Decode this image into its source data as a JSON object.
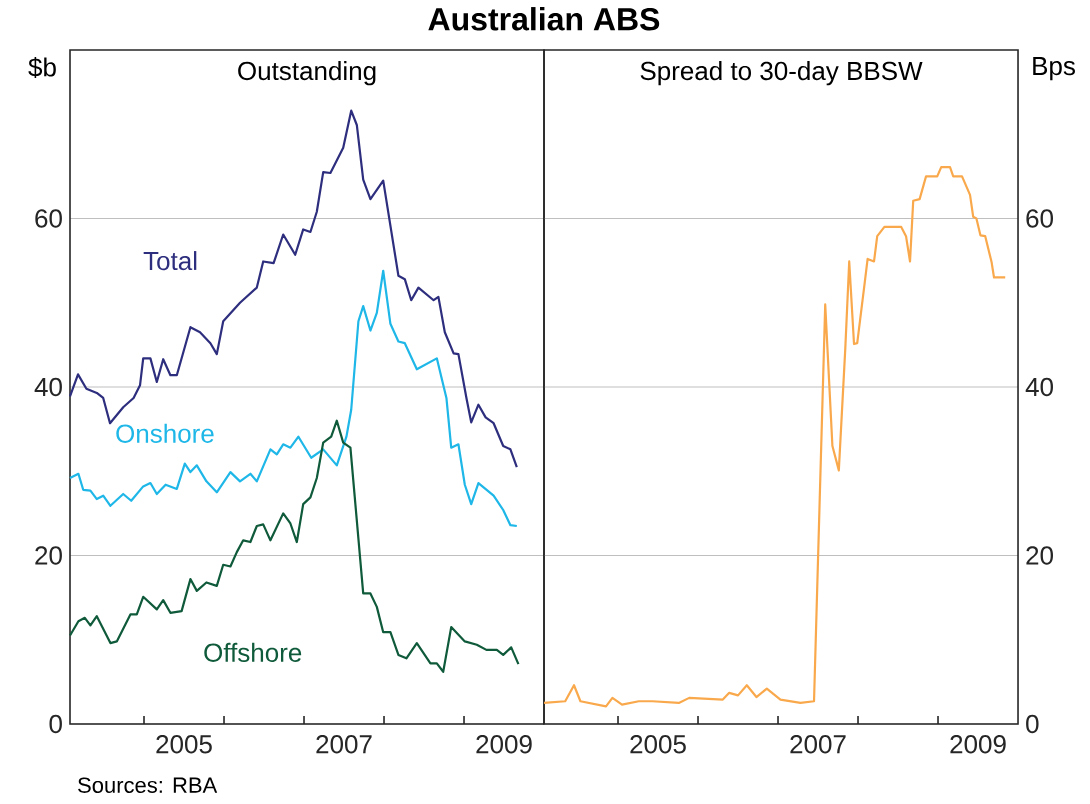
{
  "chart_data": [
    {
      "type": "line",
      "title": "Australian ABS",
      "subtitle": "Outstanding",
      "ylabel": "$b",
      "xlim": [
        2004.075,
        2010
      ],
      "ylim": [
        0,
        80
      ],
      "xticks": [
        {
          "value": 2005,
          "label": null
        },
        {
          "value": 2005.5,
          "label": "2005"
        },
        {
          "value": 2006,
          "label": null
        },
        {
          "value": 2007,
          "label": null
        },
        {
          "value": 2007.5,
          "label": "2007"
        },
        {
          "value": 2008,
          "label": null
        },
        {
          "value": 2009,
          "label": null
        },
        {
          "value": 2009.5,
          "label": "2009"
        }
      ],
      "yticks": [
        0,
        20,
        40,
        60
      ],
      "grid": "y",
      "annotations": [
        "Sources: RBA"
      ],
      "series": [
        {
          "name": "Total",
          "color": "#2e2e7e",
          "x": [
            2004.075,
            2004.175,
            2004.28,
            2004.41,
            2004.49,
            2004.575,
            2004.74,
            2004.87,
            2004.95,
            2004.99,
            2005.08,
            2005.16,
            2005.24,
            2005.33,
            2005.41,
            2005.58,
            2005.7,
            2005.83,
            2005.91,
            2005.99,
            2006.2,
            2006.41,
            2006.49,
            2006.62,
            2006.74,
            2006.89,
            2006.99,
            2007.08,
            2007.16,
            2007.24,
            2007.33,
            2007.49,
            2007.59,
            2007.66,
            2007.74,
            2007.83,
            2007.99,
            2008.18,
            2008.26,
            2008.34,
            2008.43,
            2008.62,
            2008.68,
            2008.76,
            2008.87,
            2008.93,
            2009.03,
            2009.09,
            2009.18,
            2009.27,
            2009.37,
            2009.49,
            2009.58,
            2009.66
          ],
          "values": [
            38.9,
            41.5,
            39.8,
            39.3,
            38.7,
            35.7,
            37.6,
            38.7,
            40.2,
            43.4,
            43.4,
            40.6,
            43.3,
            41.4,
            41.4,
            47.1,
            46.5,
            45.2,
            43.9,
            47.8,
            50.0,
            51.8,
            54.9,
            54.7,
            58.1,
            55.7,
            58.7,
            58.4,
            60.8,
            65.5,
            65.4,
            68.4,
            72.8,
            71.1,
            64.6,
            62.3,
            64.5,
            53.2,
            52.8,
            50.3,
            51.8,
            50.3,
            50.7,
            46.5,
            44.0,
            43.9,
            38.7,
            35.8,
            37.9,
            36.4,
            35.7,
            33.0,
            32.6,
            30.5
          ]
        },
        {
          "name": "Onshore",
          "color": "#1eb7e8",
          "x": [
            2004.075,
            2004.18,
            2004.24,
            2004.33,
            2004.41,
            2004.49,
            2004.58,
            2004.74,
            2004.84,
            2004.99,
            2005.08,
            2005.16,
            2005.27,
            2005.41,
            2005.51,
            2005.58,
            2005.66,
            2005.78,
            2005.91,
            2006.08,
            2006.2,
            2006.33,
            2006.41,
            2006.58,
            2006.66,
            2006.74,
            2006.83,
            2006.93,
            2007.09,
            2007.24,
            2007.41,
            2007.53,
            2007.59,
            2007.68,
            2007.74,
            2007.83,
            2007.91,
            2007.99,
            2008.08,
            2008.18,
            2008.26,
            2008.41,
            2008.66,
            2008.78,
            2008.84,
            2008.93,
            2009.01,
            2009.09,
            2009.18,
            2009.37,
            2009.49,
            2009.58,
            2009.66
          ],
          "values": [
            29.2,
            29.7,
            27.8,
            27.7,
            26.7,
            27.1,
            25.9,
            27.3,
            26.5,
            28.2,
            28.6,
            27.3,
            28.4,
            27.9,
            30.9,
            29.9,
            30.7,
            28.8,
            27.5,
            29.9,
            28.8,
            29.7,
            28.8,
            32.6,
            32.0,
            33.2,
            32.8,
            34.1,
            31.6,
            32.6,
            30.7,
            34.1,
            37.3,
            47.8,
            49.6,
            46.7,
            48.8,
            53.8,
            47.5,
            45.4,
            45.2,
            42.1,
            43.4,
            38.7,
            32.8,
            33.2,
            28.4,
            26.1,
            28.6,
            27.1,
            25.4,
            23.6,
            23.5
          ]
        },
        {
          "name": "Offshore",
          "color": "#0f5a3a",
          "x": [
            2004.075,
            2004.18,
            2004.26,
            2004.33,
            2004.41,
            2004.58,
            2004.66,
            2004.83,
            2004.91,
            2004.99,
            2005.16,
            2005.24,
            2005.33,
            2005.47,
            2005.58,
            2005.66,
            2005.78,
            2005.91,
            2005.99,
            2006.08,
            2006.16,
            2006.24,
            2006.33,
            2006.41,
            2006.49,
            2006.58,
            2006.74,
            2006.83,
            2006.91,
            2006.99,
            2007.08,
            2007.16,
            2007.24,
            2007.34,
            2007.41,
            2007.49,
            2007.58,
            2007.74,
            2007.83,
            2007.91,
            2007.99,
            2008.08,
            2008.18,
            2008.28,
            2008.41,
            2008.58,
            2008.66,
            2008.74,
            2008.84,
            2009.01,
            2009.16,
            2009.28,
            2009.41,
            2009.49,
            2009.59,
            2009.68
          ],
          "values": [
            10.5,
            12.2,
            12.6,
            11.7,
            12.8,
            9.6,
            9.8,
            13.0,
            13.0,
            15.1,
            13.6,
            14.7,
            13.2,
            13.4,
            17.2,
            15.8,
            16.8,
            16.4,
            18.9,
            18.7,
            20.4,
            21.8,
            21.6,
            23.5,
            23.7,
            21.8,
            25.0,
            23.8,
            21.6,
            26.1,
            26.9,
            29.2,
            33.4,
            34.1,
            36.0,
            33.4,
            32.8,
            15.5,
            15.5,
            13.9,
            10.9,
            10.9,
            8.2,
            7.8,
            9.6,
            7.2,
            7.2,
            6.2,
            11.5,
            9.8,
            9.4,
            8.8,
            8.8,
            8.2,
            9.1,
            7.1
          ]
        }
      ]
    },
    {
      "type": "line",
      "subtitle": "Spread to 30-day BBSW",
      "y2label": "Bps",
      "xlim": [
        2004.075,
        2010
      ],
      "y2lim": [
        0,
        80
      ],
      "xticks": [
        {
          "value": 2005,
          "label": null
        },
        {
          "value": 2005.5,
          "label": "2005"
        },
        {
          "value": 2006,
          "label": null
        },
        {
          "value": 2007,
          "label": null
        },
        {
          "value": 2007.5,
          "label": "2007"
        },
        {
          "value": 2008,
          "label": null
        },
        {
          "value": 2009,
          "label": null
        },
        {
          "value": 2009.5,
          "label": "2009"
        }
      ],
      "y2ticks": [
        0,
        20,
        40,
        60
      ],
      "grid": "y",
      "series": [
        {
          "color": "#f9a94c",
          "axis": "y2",
          "x": [
            2004.075,
            2004.34,
            2004.45,
            2004.53,
            2004.85,
            2004.93,
            2005.05,
            2005.26,
            2005.43,
            2005.76,
            2005.89,
            2006.31,
            2006.39,
            2006.5,
            2006.61,
            2006.73,
            2006.86,
            2007.03,
            2007.28,
            2007.45,
            2007.59,
            2007.68,
            2007.76,
            2007.84,
            2007.89,
            2007.95,
            2007.99,
            2008.08,
            2008.12,
            2008.2,
            2008.24,
            2008.33,
            2008.54,
            2008.6,
            2008.65,
            2008.69,
            2008.77,
            2008.85,
            2008.99,
            2009.04,
            2009.15,
            2009.19,
            2009.3,
            2009.4,
            2009.44,
            2009.48,
            2009.53,
            2009.59,
            2009.67,
            2009.7,
            2009.84
          ],
          "values": [
            2.5,
            2.7,
            4.6,
            2.7,
            2.1,
            3.1,
            2.3,
            2.7,
            2.7,
            2.5,
            3.1,
            2.9,
            3.7,
            3.4,
            4.6,
            3.2,
            4.2,
            2.9,
            2.5,
            2.7,
            49.8,
            33.0,
            30.1,
            44.4,
            54.9,
            45.1,
            45.2,
            52.1,
            55.2,
            54.9,
            57.9,
            59.0,
            59.0,
            57.9,
            54.9,
            62.1,
            62.3,
            65.0,
            65.0,
            66.1,
            66.1,
            65.0,
            65.0,
            62.8,
            60.2,
            60.0,
            58.0,
            57.9,
            54.8,
            53.0,
            53.0
          ]
        }
      ]
    }
  ]
}
